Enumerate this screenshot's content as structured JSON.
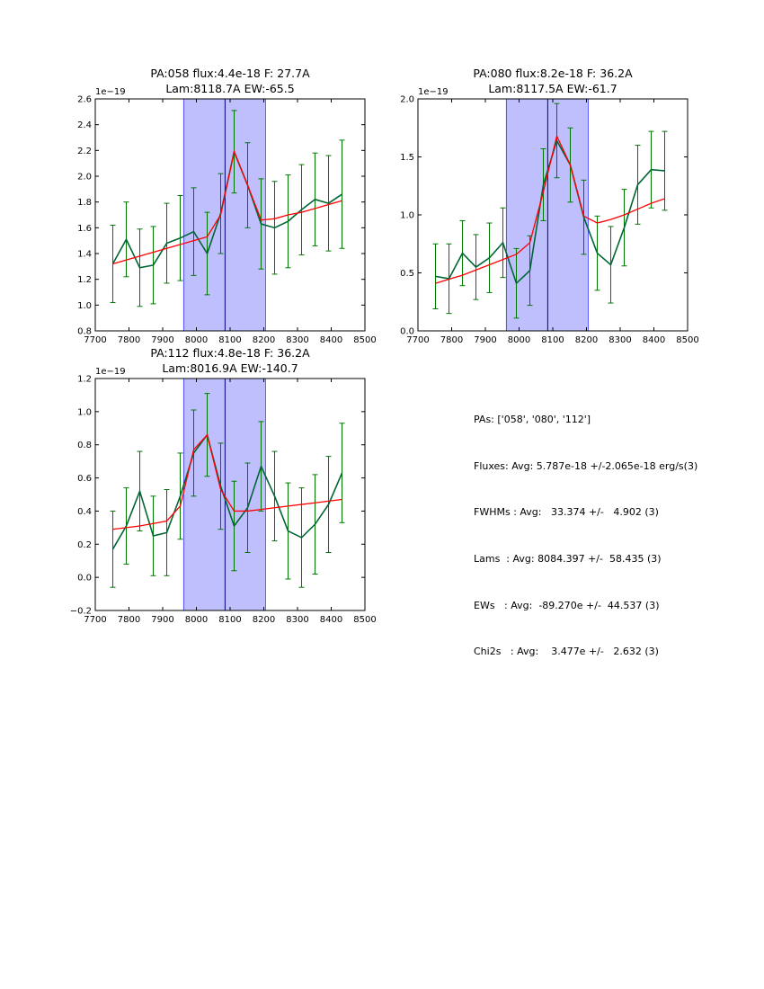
{
  "chart_data": [
    {
      "type": "line",
      "title_line1": "PA:058 flux:4.4e-18 F: 27.7A",
      "title_line2": "Lam:8118.7A EW:-65.5",
      "offset_label": "1e−19",
      "xlim": [
        7700,
        8500
      ],
      "ylim": [
        0.8,
        2.6
      ],
      "xticks": [
        "7700",
        "7800",
        "7900",
        "8000",
        "8100",
        "8200",
        "8300",
        "8400",
        "8500"
      ],
      "yticks": [
        "0.8",
        "1.0",
        "1.2",
        "1.4",
        "1.6",
        "1.8",
        "2.0",
        "2.2",
        "2.4",
        "2.6"
      ],
      "ytick_values": [
        0.8,
        1.0,
        1.2,
        1.4,
        1.6,
        1.8,
        2.0,
        2.2,
        2.4,
        2.6
      ],
      "shaded_region": [
        7962,
        8205
      ],
      "center_line": 8085,
      "series": [
        {
          "x": [
            7752,
            7792,
            7832,
            7872,
            7912,
            7952,
            7992,
            8032,
            8072,
            8112,
            8152,
            8192,
            8232,
            8272,
            8312,
            8352,
            8392,
            8432
          ],
          "y": [
            1.32,
            1.51,
            1.29,
            1.31,
            1.48,
            1.52,
            1.57,
            1.4,
            1.71,
            2.19,
            1.93,
            1.63,
            1.6,
            1.65,
            1.74,
            1.82,
            1.79,
            1.86
          ],
          "err": [
            0.3,
            0.29,
            0.3,
            0.3,
            0.31,
            0.33,
            0.34,
            0.32,
            0.31,
            0.32,
            0.33,
            0.35,
            0.36,
            0.36,
            0.35,
            0.36,
            0.37,
            0.42
          ]
        },
        {
          "x": [
            7752,
            7912,
            8032,
            8072,
            8112,
            8152,
            8192,
            8232,
            8272,
            8312,
            8352,
            8392,
            8432
          ],
          "y": [
            1.32,
            1.44,
            1.53,
            1.7,
            2.19,
            1.93,
            1.66,
            1.67,
            1.7,
            1.72,
            1.75,
            1.78,
            1.81
          ]
        }
      ]
    },
    {
      "type": "line",
      "title_line1": "PA:080 flux:8.2e-18 F: 36.2A",
      "title_line2": "Lam:8117.5A EW:-61.7",
      "offset_label": "1e−19",
      "xlim": [
        7700,
        8500
      ],
      "ylim": [
        0.0,
        2.0
      ],
      "xticks": [
        "7700",
        "7800",
        "7900",
        "8000",
        "8100",
        "8200",
        "8300",
        "8400",
        "8500"
      ],
      "yticks": [
        "0.0",
        "0.5",
        "1.0",
        "1.5",
        "2.0"
      ],
      "ytick_values": [
        0.0,
        0.5,
        1.0,
        1.5,
        2.0
      ],
      "shaded_region": [
        7962,
        8205
      ],
      "center_line": 8085,
      "series": [
        {
          "x": [
            7752,
            7792,
            7832,
            7872,
            7912,
            7952,
            7992,
            8032,
            8072,
            8112,
            8152,
            8192,
            8232,
            8272,
            8312,
            8352,
            8392,
            8432
          ],
          "y": [
            0.47,
            0.45,
            0.67,
            0.55,
            0.63,
            0.76,
            0.41,
            0.52,
            1.26,
            1.64,
            1.43,
            0.98,
            0.67,
            0.57,
            0.89,
            1.26,
            1.39,
            1.38
          ],
          "err": [
            0.28,
            0.3,
            0.28,
            0.28,
            0.3,
            0.3,
            0.3,
            0.3,
            0.31,
            0.32,
            0.32,
            0.32,
            0.32,
            0.33,
            0.33,
            0.34,
            0.33,
            0.34
          ]
        },
        {
          "x": [
            7752,
            7832,
            7912,
            7992,
            8032,
            8072,
            8112,
            8152,
            8192,
            8232,
            8272,
            8312,
            8352,
            8392,
            8432
          ],
          "y": [
            0.41,
            0.48,
            0.57,
            0.66,
            0.76,
            1.2,
            1.68,
            1.43,
            0.99,
            0.93,
            0.96,
            1.0,
            1.05,
            1.1,
            1.14
          ]
        }
      ]
    },
    {
      "type": "line",
      "title_line1": "PA:112 flux:4.8e-18 F: 36.2A",
      "title_line2": "Lam:8016.9A EW:-140.7",
      "offset_label": "1e−19",
      "xlim": [
        7700,
        8500
      ],
      "ylim": [
        -0.2,
        1.2
      ],
      "xticks": [
        "7700",
        "7800",
        "7900",
        "8000",
        "8100",
        "8200",
        "8300",
        "8400",
        "8500"
      ],
      "yticks": [
        "−0.2",
        "0.0",
        "0.2",
        "0.4",
        "0.6",
        "0.8",
        "1.0",
        "1.2"
      ],
      "ytick_values": [
        -0.2,
        0.0,
        0.2,
        0.4,
        0.6,
        0.8,
        1.0,
        1.2
      ],
      "shaded_region": [
        7962,
        8205
      ],
      "center_line": 8085,
      "series": [
        {
          "x": [
            7752,
            7792,
            7832,
            7872,
            7912,
            7952,
            7992,
            8032,
            8072,
            8112,
            8152,
            8192,
            8232,
            8272,
            8312,
            8352,
            8392,
            8432
          ],
          "y": [
            0.17,
            0.31,
            0.52,
            0.25,
            0.27,
            0.49,
            0.75,
            0.86,
            0.55,
            0.31,
            0.42,
            0.67,
            0.49,
            0.28,
            0.24,
            0.32,
            0.44,
            0.63
          ],
          "err": [
            0.23,
            0.23,
            0.24,
            0.24,
            0.26,
            0.26,
            0.26,
            0.25,
            0.26,
            0.27,
            0.27,
            0.27,
            0.27,
            0.29,
            0.3,
            0.3,
            0.29,
            0.3
          ]
        },
        {
          "x": [
            7752,
            7832,
            7912,
            7952,
            7992,
            8032,
            8072,
            8112,
            8152,
            8192,
            8232,
            8272,
            8312,
            8352,
            8392,
            8432
          ],
          "y": [
            0.29,
            0.31,
            0.34,
            0.43,
            0.77,
            0.86,
            0.53,
            0.4,
            0.4,
            0.41,
            0.42,
            0.43,
            0.44,
            0.45,
            0.46,
            0.47
          ]
        }
      ]
    }
  ],
  "summary": {
    "pas": "PAs: ['058', '080', '112']",
    "fluxes": "Fluxes: Avg: 5.787e-18 +/-2.065e-18 erg/s(3)",
    "fwhms": "FWHMs : Avg:   33.374 +/-   4.902 (3)",
    "lams": "Lams  : Avg: 8084.397 +/-  58.435 (3)",
    "ews": "EWs   : Avg:  -89.270e +/-  44.537 (3)",
    "chi2s": "Chi2s   : Avg:    3.477e +/-   2.632 (3)"
  },
  "colors": {
    "data_line": "#006633",
    "errorbar": "#007700",
    "fit_line": "#ff0000",
    "shade": "#bfbffe",
    "center_line": "#000080"
  }
}
